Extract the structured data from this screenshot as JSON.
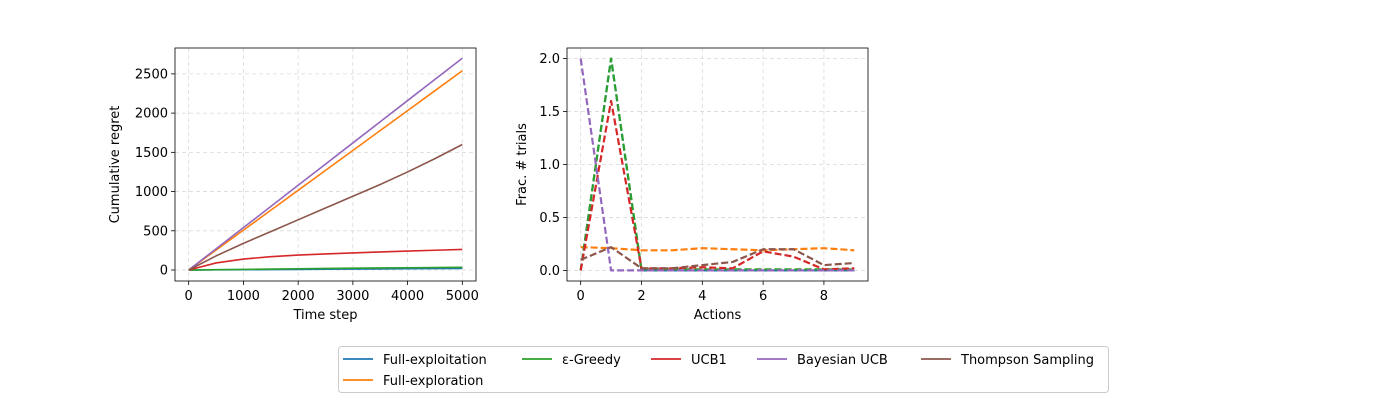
{
  "legend": {
    "entries": [
      "Full-exploitation",
      "Full-exploration",
      "ε-Greedy",
      "UCB1",
      "Bayesian UCB",
      "Thompson Sampling"
    ],
    "location": "bottom-center, below plots"
  },
  "chart_data": [
    {
      "type": "line",
      "title": "",
      "xlabel": "Time step",
      "ylabel": "Cumulative regret",
      "xlim": [
        -250,
        5250
      ],
      "ylim": [
        -140,
        2830
      ],
      "xticks": [
        0,
        1000,
        2000,
        3000,
        4000,
        5000
      ],
      "yticks": [
        0,
        500,
        1000,
        1500,
        2000,
        2500
      ],
      "grid": true,
      "line_style": "solid",
      "x": [
        0,
        500,
        1000,
        1500,
        2000,
        2500,
        3000,
        3500,
        4000,
        4500,
        5000
      ],
      "series": [
        {
          "name": "Full-exploitation",
          "color": "#1f77b4",
          "values": [
            0,
            2,
            4,
            6,
            8,
            10,
            12,
            14,
            16,
            18,
            20
          ]
        },
        {
          "name": "Full-exploration",
          "color": "#ff7f0e",
          "values": [
            0,
            254,
            508,
            762,
            1016,
            1270,
            1524,
            1778,
            2032,
            2286,
            2540
          ]
        },
        {
          "name": "ε-Greedy",
          "color": "#2ca02c",
          "values": [
            0,
            4,
            8,
            12,
            16,
            20,
            23,
            26,
            29,
            32,
            35
          ]
        },
        {
          "name": "UCB1",
          "color": "#d62728",
          "values": [
            0,
            90,
            140,
            170,
            190,
            205,
            218,
            230,
            242,
            252,
            262
          ]
        },
        {
          "name": "Bayesian UCB",
          "color": "#9467bd",
          "values": [
            0,
            270,
            540,
            810,
            1080,
            1350,
            1620,
            1890,
            2160,
            2430,
            2700
          ]
        },
        {
          "name": "Thompson Sampling",
          "color": "#8c564b",
          "values": [
            0,
            180,
            340,
            490,
            640,
            790,
            940,
            1090,
            1250,
            1420,
            1600
          ]
        }
      ]
    },
    {
      "type": "line",
      "title": "",
      "xlabel": "Actions",
      "ylabel": "Frac. # trials",
      "xlim": [
        -0.45,
        9.45
      ],
      "ylim": [
        -0.1,
        2.1
      ],
      "xticks": [
        0,
        2,
        4,
        6,
        8
      ],
      "yticks": [
        0.0,
        0.5,
        1.0,
        1.5,
        2.0
      ],
      "ytick_labels": [
        "0.0",
        "0.5",
        "1.0",
        "1.5",
        "2.0"
      ],
      "grid": true,
      "line_style": "dashed",
      "x": [
        0,
        1,
        2,
        3,
        4,
        5,
        6,
        7,
        8,
        9
      ],
      "series": [
        {
          "name": "Full-exploitation",
          "color": "#1f77b4",
          "values": [
            0,
            2.0,
            0,
            0,
            0,
            0,
            0,
            0,
            0,
            0
          ]
        },
        {
          "name": "Full-exploration",
          "color": "#ff7f0e",
          "values": [
            0.22,
            0.21,
            0.19,
            0.19,
            0.21,
            0.2,
            0.19,
            0.2,
            0.21,
            0.19
          ]
        },
        {
          "name": "ε-Greedy",
          "color": "#2ca02c",
          "values": [
            0,
            2.0,
            0.01,
            0.01,
            0.01,
            0.01,
            0.01,
            0.01,
            0.01,
            0.01
          ]
        },
        {
          "name": "UCB1",
          "color": "#d62728",
          "values": [
            0,
            1.6,
            0.02,
            0.02,
            0.03,
            0.02,
            0.18,
            0.13,
            0.01,
            0.02
          ]
        },
        {
          "name": "Bayesian UCB",
          "color": "#9467bd",
          "values": [
            2.0,
            0,
            0,
            0,
            0,
            0,
            0,
            0,
            0,
            0
          ]
        },
        {
          "name": "Thompson Sampling",
          "color": "#8c564b",
          "values": [
            0.1,
            0.22,
            0.02,
            0.02,
            0.05,
            0.08,
            0.2,
            0.2,
            0.05,
            0.07
          ]
        }
      ]
    }
  ]
}
